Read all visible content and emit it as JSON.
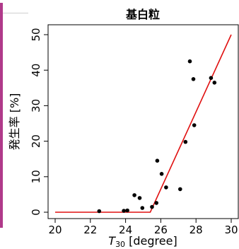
{
  "chart_data": {
    "type": "scatter",
    "title": "基白粒",
    "xlabel_main": "T",
    "xlabel_sub": "30",
    "xlabel_rest": " [degree]",
    "ylabel": "発生率 [%]",
    "xlim": [
      20,
      30
    ],
    "ylim": [
      0,
      50
    ],
    "x_ticks": [
      20,
      22,
      24,
      26,
      28,
      30
    ],
    "y_ticks": [
      0,
      10,
      20,
      30,
      40,
      50
    ],
    "grid": false,
    "points": [
      {
        "x": 22.5,
        "y": 0.3
      },
      {
        "x": 23.9,
        "y": 0.4
      },
      {
        "x": 24.1,
        "y": 0.5
      },
      {
        "x": 24.5,
        "y": 4.8
      },
      {
        "x": 24.8,
        "y": 4.0
      },
      {
        "x": 24.95,
        "y": 1.2
      },
      {
        "x": 25.5,
        "y": 1.5
      },
      {
        "x": 25.75,
        "y": 2.6
      },
      {
        "x": 25.8,
        "y": 14.5
      },
      {
        "x": 26.05,
        "y": 10.8
      },
      {
        "x": 26.3,
        "y": 7.0
      },
      {
        "x": 27.1,
        "y": 6.5
      },
      {
        "x": 27.4,
        "y": 19.8
      },
      {
        "x": 27.65,
        "y": 42.5
      },
      {
        "x": 27.85,
        "y": 37.5
      },
      {
        "x": 27.9,
        "y": 24.5
      },
      {
        "x": 28.85,
        "y": 37.8
      },
      {
        "x": 29.05,
        "y": 36.5
      }
    ],
    "fit_line": {
      "x": [
        20,
        25.4,
        30
      ],
      "y": [
        0,
        0,
        50
      ],
      "color": "#e01010"
    },
    "point_color": "#000000"
  }
}
